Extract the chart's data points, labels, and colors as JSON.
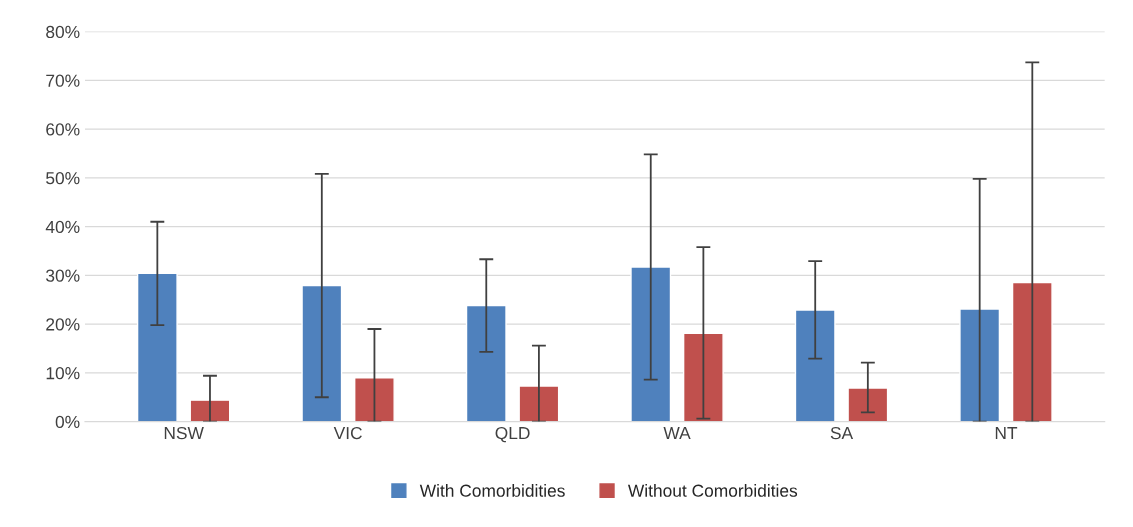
{
  "chart_data": {
    "type": "bar",
    "categories": [
      "NSW",
      "VIC",
      "QLD",
      "WA",
      "SA",
      "NT"
    ],
    "series": [
      {
        "name": "With Comorbidities",
        "color": "#4f81bd",
        "values": [
          30.4,
          27.9,
          23.8,
          31.7,
          22.9,
          23.1
        ],
        "errors": [
          [
            19.8,
            41.0
          ],
          [
            5.0,
            50.8
          ],
          [
            14.3,
            33.3
          ],
          [
            8.6,
            54.8
          ],
          [
            12.9,
            32.9
          ],
          [
            0,
            49.8
          ]
        ]
      },
      {
        "name": "Without Comorbidities",
        "color": "#c0504d",
        "values": [
          4.4,
          9.0,
          7.3,
          18.1,
          6.9,
          28.5
        ],
        "errors": [
          [
            0,
            9.4
          ],
          [
            0,
            19.0
          ],
          [
            0,
            15.6
          ],
          [
            0.6,
            35.8
          ],
          [
            1.9,
            12.1
          ],
          [
            0,
            73.7
          ]
        ]
      }
    ],
    "ylim": [
      0,
      80
    ],
    "yticks": [
      {
        "value": 0,
        "label": "0%"
      },
      {
        "value": 10,
        "label": "10%"
      },
      {
        "value": 20,
        "label": "20%"
      },
      {
        "value": 30,
        "label": "30%"
      },
      {
        "value": 40,
        "label": "40%"
      },
      {
        "value": 50,
        "label": "50%"
      },
      {
        "value": 60,
        "label": "60%"
      },
      {
        "value": 70,
        "label": "70%"
      },
      {
        "value": 80,
        "label": "80%"
      }
    ],
    "grid": "y",
    "legend": "bottom"
  }
}
